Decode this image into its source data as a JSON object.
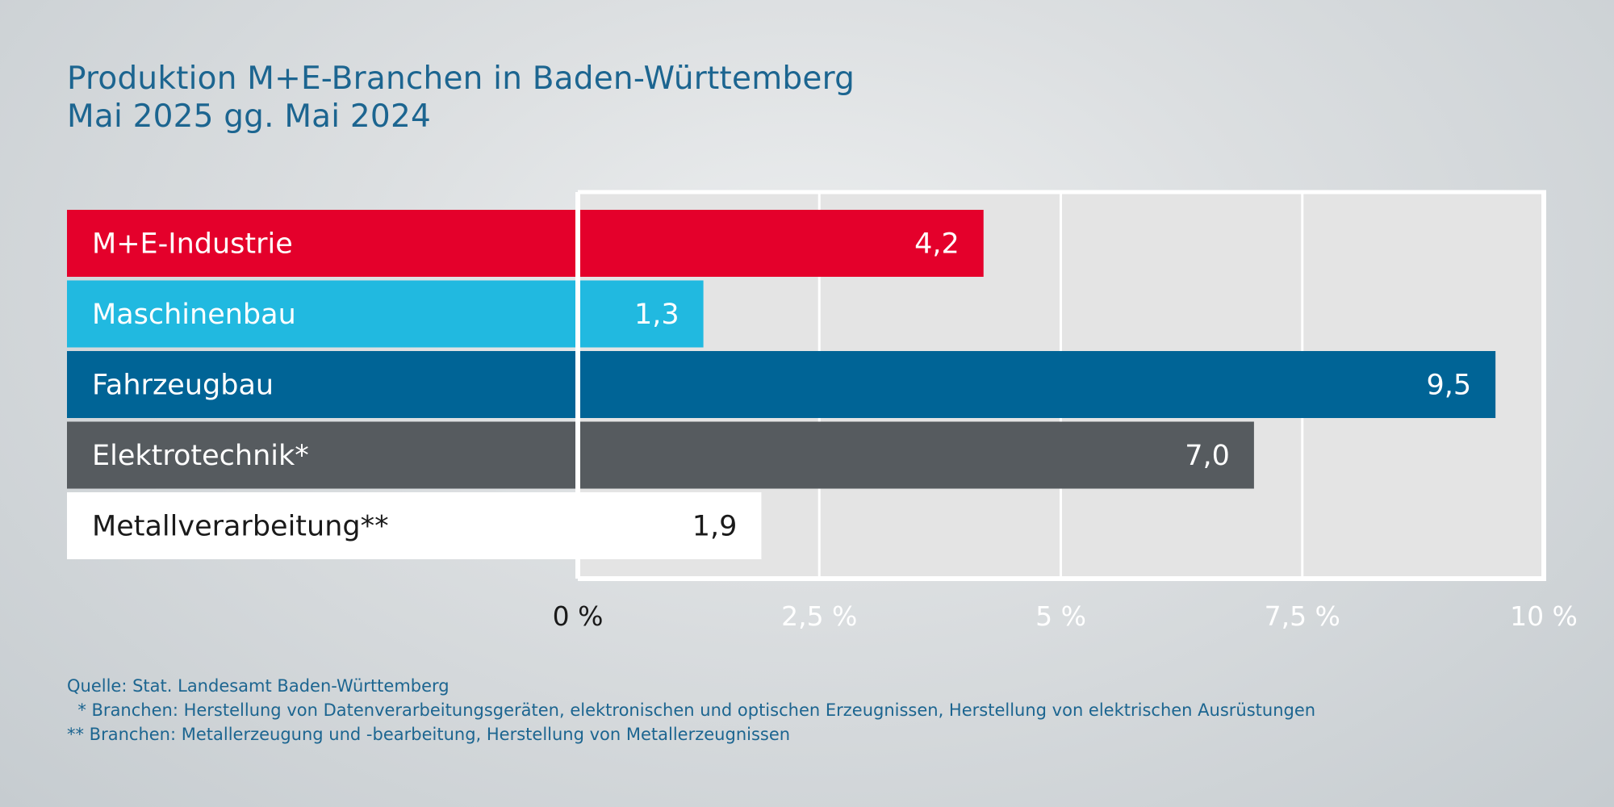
{
  "header": {
    "title_line1": "Produktion M+E-Branchen in Baden-Württemberg",
    "title_line2": "Mai 2025 gg. Mai 2024"
  },
  "footer": {
    "source": "Quelle: Stat. Landesamt Baden-Württemberg",
    "note1": "  * Branchen: Herstellung von Datenverarbeitungsgeräten, elektronischen und optischen Erzeugnissen, Herstellung von elektrischen Ausrüstungen",
    "note2": "** Branchen: Metallerzeugung und -bearbeitung, Herstellung von Metallerzeugnissen"
  },
  "colors": {
    "title": "#1c6590",
    "plot_bg": "#e4e4e4",
    "grid": "#ffffff"
  },
  "chart_data": {
    "type": "bar",
    "orientation": "horizontal",
    "title": "Produktion M+E-Branchen in Baden-Württemberg",
    "subtitle": "Mai 2025 gg. Mai 2024",
    "unit": "%",
    "categories": [
      "M+E-Industrie",
      "Maschinenbau",
      "Fahrzeugbau",
      "Elektrotechnik*",
      "Metallverarbeitung**"
    ],
    "values": [
      4.2,
      1.3,
      9.5,
      7.0,
      1.9
    ],
    "value_labels": [
      "4,2",
      "1,3",
      "9,5",
      "7,0",
      "1,9"
    ],
    "bar_colors": [
      "#e4002b",
      "#21b9e0",
      "#006496",
      "#565b5f",
      "#ffffff"
    ],
    "text_colors": [
      "#ffffff",
      "#ffffff",
      "#ffffff",
      "#ffffff",
      "#1a1a1a"
    ],
    "xlim": [
      0,
      10
    ],
    "xticks": [
      0,
      2.5,
      5,
      7.5,
      10
    ],
    "xtick_labels": [
      "0 %",
      "2,5 %",
      "5 %",
      "7,5 %",
      "10 %"
    ],
    "xlabel": "",
    "ylabel": "",
    "grid": true
  }
}
